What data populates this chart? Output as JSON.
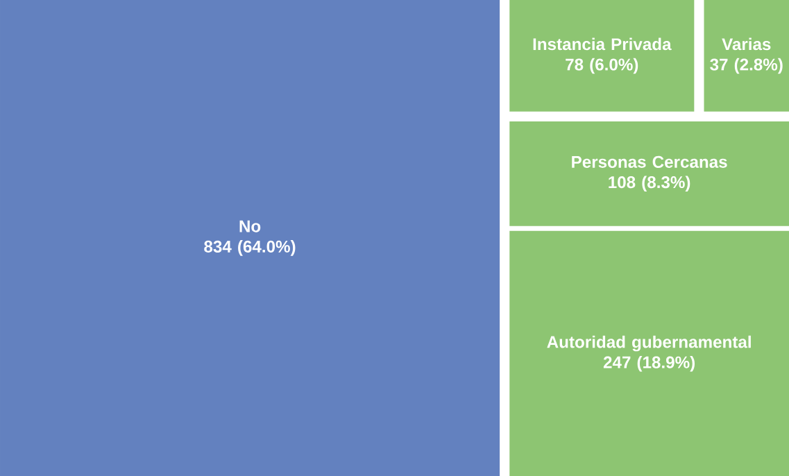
{
  "chart_data": {
    "type": "other",
    "categories": [
      "No",
      "Autoridad gubernamental",
      "Personas Cercanas",
      "Instancia Privada",
      "Varias"
    ],
    "values": [
      834,
      247,
      108,
      78,
      37
    ],
    "value_labels": [
      "834 (64.0%)",
      "247 (18.9%)",
      "108 (8.3%)",
      "78 (6.0%)",
      "37 (2.8%)"
    ],
    "colors": [
      "#6381bf",
      "#8dc572",
      "#8dc572",
      "#8dc572",
      "#8dc572"
    ]
  }
}
